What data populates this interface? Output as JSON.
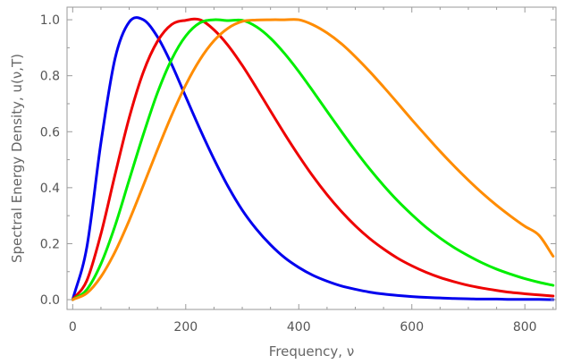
{
  "chart_data": {
    "type": "line",
    "xlabel": "Frequency, ν",
    "ylabel": "Spectral Energy Density, u(ν,T)",
    "xlim": [
      -10,
      855
    ],
    "ylim": [
      -0.035,
      1.045
    ],
    "x_ticks": [
      0,
      200,
      400,
      600,
      800
    ],
    "x_tick_labels": [
      "0",
      "200",
      "400",
      "600",
      "800"
    ],
    "y_ticks": [
      0.0,
      0.2,
      0.4,
      0.6,
      0.8,
      1.0
    ],
    "y_tick_labels": [
      "0.0",
      "0.2",
      "0.4",
      "0.6",
      "0.8",
      "1.0"
    ],
    "grid": false,
    "x": [
      0,
      25,
      50,
      75,
      100,
      125,
      150,
      175,
      200,
      225,
      250,
      275,
      300,
      325,
      350,
      375,
      400,
      425,
      450,
      475,
      500,
      525,
      550,
      575,
      600,
      625,
      650,
      675,
      700,
      725,
      750,
      775,
      800,
      825,
      850
    ],
    "series": [
      {
        "color": "#0000ee",
        "peak_x": 128,
        "values": [
          0.0,
          0.187,
          0.561,
          0.862,
          0.992,
          1.0,
          0.939,
          0.841,
          0.725,
          0.61,
          0.502,
          0.404,
          0.32,
          0.252,
          0.196,
          0.15,
          0.115,
          0.087,
          0.066,
          0.049,
          0.037,
          0.027,
          0.02,
          0.015,
          0.011,
          0.008,
          0.006,
          0.004,
          0.003,
          0.002,
          0.002,
          0.001,
          0.001,
          0.001,
          0.0
        ]
      },
      {
        "color": "#ee0000",
        "peak_x": 224,
        "values": [
          0.0,
          0.068,
          0.235,
          0.447,
          0.65,
          0.813,
          0.923,
          0.983,
          0.998,
          1.0,
          0.964,
          0.908,
          0.837,
          0.757,
          0.674,
          0.592,
          0.514,
          0.441,
          0.375,
          0.316,
          0.264,
          0.219,
          0.181,
          0.148,
          0.121,
          0.098,
          0.079,
          0.064,
          0.051,
          0.041,
          0.033,
          0.026,
          0.021,
          0.017,
          0.013
        ]
      },
      {
        "color": "#00ee00",
        "peak_x": 311,
        "values": [
          0.0,
          0.036,
          0.128,
          0.264,
          0.428,
          0.59,
          0.739,
          0.858,
          0.942,
          0.989,
          1.0,
          0.997,
          0.998,
          0.975,
          0.934,
          0.879,
          0.815,
          0.745,
          0.673,
          0.602,
          0.533,
          0.468,
          0.408,
          0.353,
          0.304,
          0.259,
          0.22,
          0.186,
          0.157,
          0.131,
          0.109,
          0.091,
          0.075,
          0.062,
          0.051
        ]
      },
      {
        "color": "#ff8c00",
        "peak_x": 397,
        "values": [
          0.0,
          0.023,
          0.082,
          0.171,
          0.283,
          0.408,
          0.536,
          0.658,
          0.767,
          0.857,
          0.925,
          0.97,
          0.994,
          0.999,
          1.0,
          1.0,
          1.0,
          0.982,
          0.953,
          0.915,
          0.868,
          0.816,
          0.76,
          0.702,
          0.643,
          0.586,
          0.53,
          0.477,
          0.427,
          0.38,
          0.337,
          0.298,
          0.262,
          0.23,
          0.155
        ]
      }
    ]
  }
}
